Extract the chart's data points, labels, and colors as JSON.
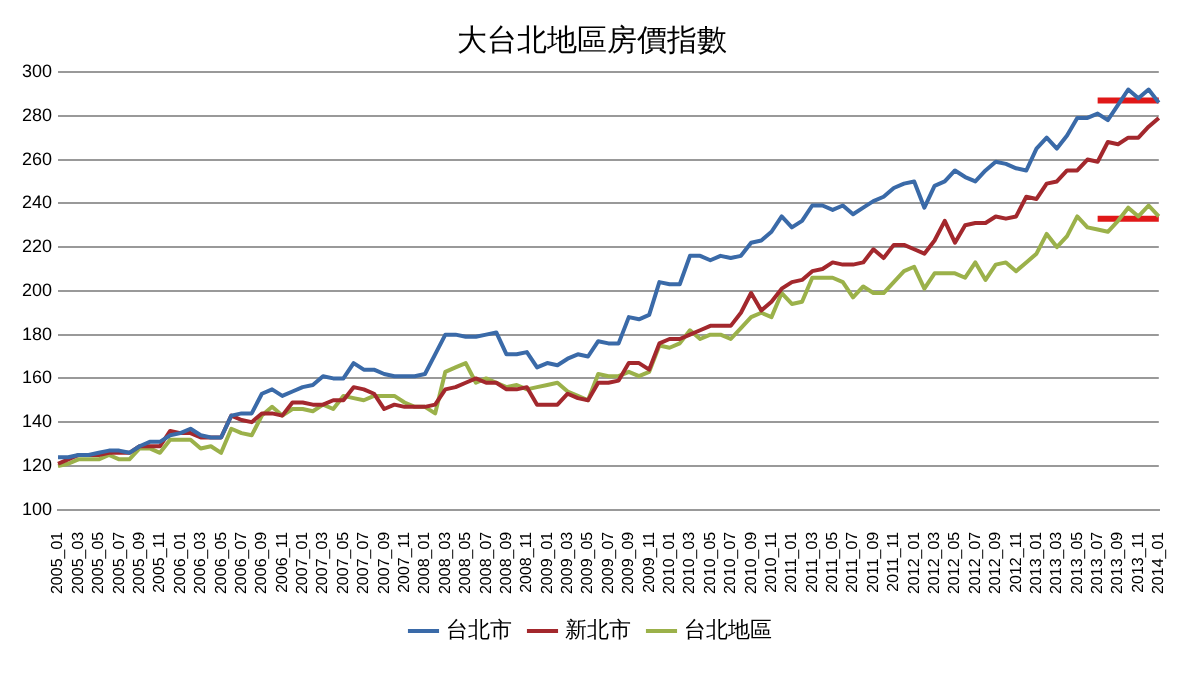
{
  "chart_data": {
    "type": "line",
    "title": "大台北地區房價指數",
    "categories": [
      "2005_01",
      null,
      "2005_03",
      null,
      "2005_05",
      null,
      "2005_07",
      null,
      "2005_09",
      null,
      "2005_11",
      null,
      "2006_01",
      null,
      "2006_03",
      null,
      "2006_05",
      null,
      "2006_07",
      null,
      "2006_09",
      null,
      "2006_11",
      null,
      "2007_01",
      null,
      "2007_03",
      null,
      "2007_05",
      null,
      "2007_07",
      null,
      "2007_09",
      null,
      "2007_11",
      null,
      "2008_01",
      null,
      "2008_03",
      null,
      "2008_05",
      null,
      "2008_07",
      null,
      "2008_09",
      null,
      "2008_11",
      null,
      "2009_01",
      null,
      "2009_03",
      null,
      "2009_05",
      null,
      "2009_07",
      null,
      "2009_09",
      null,
      "2009_11",
      null,
      "2010_01",
      null,
      "2010_03",
      null,
      "2010_05",
      null,
      "2010_07",
      null,
      "2010_09",
      null,
      "2010_11",
      null,
      "2011_01",
      null,
      "2011_03",
      null,
      "2011_05",
      null,
      "2011_07",
      null,
      "2011_09",
      null,
      "2011_11",
      null,
      "2012_01",
      null,
      "2012_03",
      null,
      "2012_05",
      null,
      "2012_07",
      null,
      "2012_09",
      null,
      "2012_11",
      null,
      "2013_01",
      null,
      "2013_03",
      null,
      "2013_05",
      null,
      "2013_07",
      null,
      "2013_09",
      null,
      "2013_11",
      null,
      "2014_01"
    ],
    "series": [
      {
        "name": "台北市",
        "color": "#3a6aa8",
        "values": [
          124,
          124,
          125,
          125,
          126,
          127,
          127,
          126,
          129,
          131,
          131,
          134,
          135,
          137,
          134,
          133,
          133,
          143,
          144,
          144,
          153,
          155,
          152,
          154,
          156,
          157,
          161,
          160,
          160,
          167,
          164,
          164,
          162,
          161,
          161,
          161,
          162,
          171,
          180,
          180,
          179,
          179,
          180,
          181,
          171,
          171,
          172,
          165,
          167,
          166,
          169,
          171,
          170,
          177,
          176,
          176,
          188,
          187,
          189,
          204,
          203,
          203,
          216,
          216,
          214,
          216,
          215,
          216,
          222,
          223,
          227,
          234,
          229,
          232,
          239,
          239,
          237,
          239,
          235,
          238,
          241,
          243,
          247,
          249,
          250,
          238,
          248,
          250,
          255,
          252,
          250,
          255,
          259,
          258,
          256,
          255,
          265,
          270,
          265,
          271,
          279,
          279,
          281,
          278,
          285,
          292,
          288,
          292,
          286
        ]
      },
      {
        "name": "新北市",
        "color": "#a3282d",
        "values": [
          121,
          123,
          125,
          125,
          125,
          126,
          126,
          126,
          129,
          129,
          129,
          136,
          135,
          135,
          133,
          133,
          133,
          143,
          141,
          140,
          144,
          144,
          143,
          149,
          149,
          148,
          148,
          150,
          150,
          156,
          155,
          153,
          146,
          148,
          147,
          147,
          147,
          148,
          155,
          156,
          158,
          160,
          158,
          158,
          155,
          155,
          156,
          148,
          148,
          148,
          153,
          151,
          150,
          158,
          158,
          159,
          167,
          167,
          164,
          176,
          178,
          178,
          180,
          182,
          184,
          184,
          184,
          190,
          199,
          191,
          195,
          201,
          204,
          205,
          209,
          210,
          213,
          212,
          212,
          213,
          219,
          215,
          221,
          221,
          219,
          217,
          223,
          232,
          222,
          230,
          231,
          231,
          234,
          233,
          234,
          243,
          242,
          249,
          250,
          255,
          255,
          260,
          259,
          268,
          267,
          270,
          270,
          275,
          279
        ]
      },
      {
        "name": "台北地區",
        "color": "#9bb14a",
        "values": [
          120,
          121,
          123,
          123,
          123,
          125,
          123,
          123,
          128,
          128,
          126,
          132,
          132,
          132,
          128,
          129,
          126,
          137,
          135,
          134,
          143,
          147,
          143,
          146,
          146,
          145,
          148,
          146,
          152,
          151,
          150,
          152,
          152,
          152,
          149,
          147,
          147,
          144,
          163,
          165,
          167,
          158,
          160,
          158,
          156,
          157,
          155,
          156,
          157,
          158,
          154,
          152,
          150,
          162,
          161,
          161,
          163,
          161,
          163,
          175,
          174,
          176,
          182,
          178,
          180,
          180,
          178,
          183,
          188,
          190,
          188,
          199,
          194,
          195,
          206,
          206,
          206,
          204,
          197,
          202,
          199,
          199,
          204,
          209,
          211,
          201,
          208,
          208,
          208,
          206,
          213,
          205,
          212,
          213,
          209,
          213,
          217,
          226,
          220,
          225,
          234,
          229,
          228,
          227,
          232,
          238,
          234,
          239,
          234
        ]
      },
      {
        "color": "#e01818",
        "values": [
          null,
          null,
          null,
          null,
          null,
          null,
          null,
          null,
          null,
          null,
          null,
          null,
          null,
          null,
          null,
          null,
          null,
          null,
          null,
          null,
          null,
          null,
          null,
          null,
          null,
          null,
          null,
          null,
          null,
          null,
          null,
          null,
          null,
          null,
          null,
          null,
          null,
          null,
          null,
          null,
          null,
          null,
          null,
          null,
          null,
          null,
          null,
          null,
          null,
          null,
          null,
          null,
          null,
          null,
          null,
          null,
          null,
          null,
          null,
          null,
          null,
          null,
          null,
          null,
          null,
          null,
          null,
          null,
          null,
          null,
          null,
          null,
          null,
          null,
          null,
          null,
          null,
          null,
          null,
          null,
          null,
          null,
          null,
          null,
          null,
          null,
          null,
          null,
          null,
          null,
          null,
          null,
          null,
          null,
          null,
          null,
          null,
          null,
          null,
          null,
          null,
          null,
          287,
          287,
          287,
          287,
          287,
          287,
          287
        ]
      },
      {
        "color": "#e01818",
        "values": [
          null,
          null,
          null,
          null,
          null,
          null,
          null,
          null,
          null,
          null,
          null,
          null,
          null,
          null,
          null,
          null,
          null,
          null,
          null,
          null,
          null,
          null,
          null,
          null,
          null,
          null,
          null,
          null,
          null,
          null,
          null,
          null,
          null,
          null,
          null,
          null,
          null,
          null,
          null,
          null,
          null,
          null,
          null,
          null,
          null,
          null,
          null,
          null,
          null,
          null,
          null,
          null,
          null,
          null,
          null,
          null,
          null,
          null,
          null,
          null,
          null,
          null,
          null,
          null,
          null,
          null,
          null,
          null,
          null,
          null,
          null,
          null,
          null,
          null,
          null,
          null,
          null,
          null,
          null,
          null,
          null,
          null,
          null,
          null,
          null,
          null,
          null,
          null,
          null,
          null,
          null,
          null,
          null,
          null,
          null,
          null,
          null,
          null,
          null,
          null,
          null,
          null,
          233,
          233,
          233,
          233,
          233,
          233,
          233
        ]
      }
    ],
    "ylim": [
      100,
      300
    ],
    "yticks": [
      100,
      120,
      140,
      160,
      180,
      200,
      220,
      240,
      260,
      280,
      300
    ],
    "grid": "y",
    "legend": "bottom",
    "marker": "none",
    "line_style": "solid"
  }
}
